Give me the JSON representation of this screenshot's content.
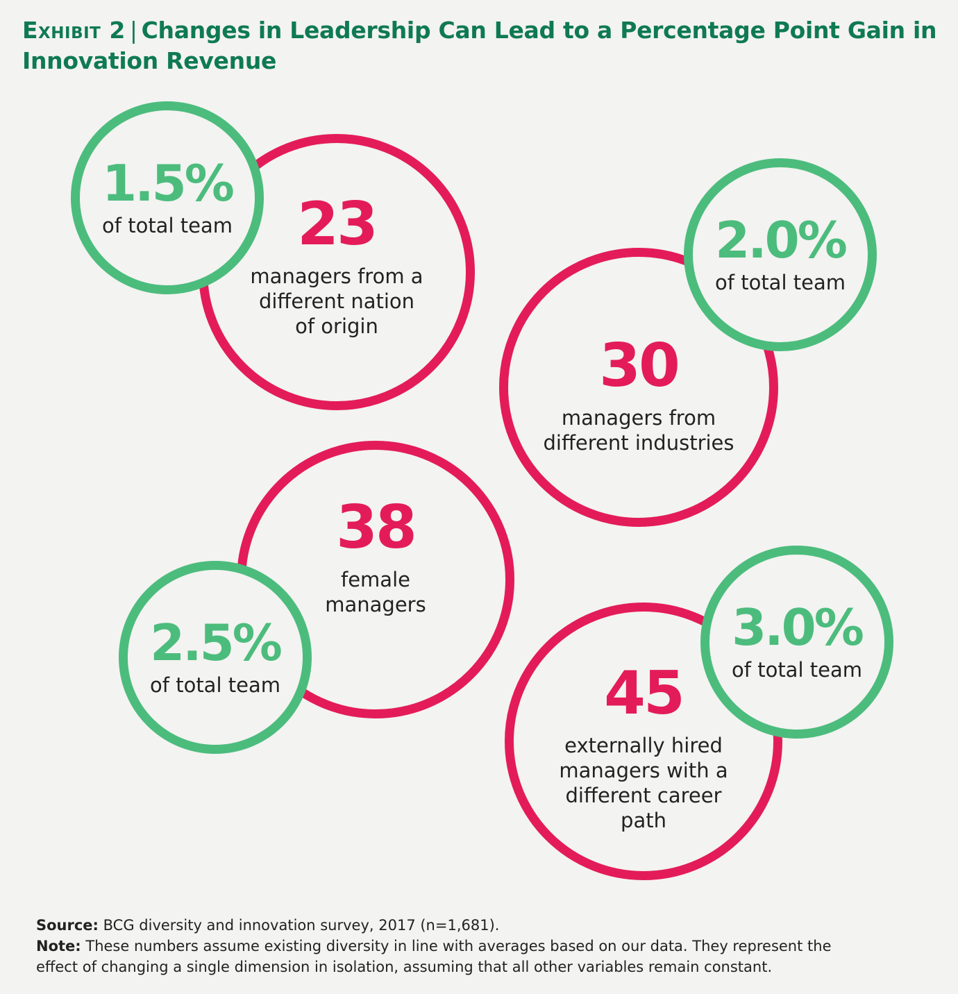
{
  "title": {
    "exhibit": "Exhibit 2",
    "separator": "|",
    "text": "Changes in Leadership Can Lead to a Percentage Point Gain in Innovation Revenue"
  },
  "items": [
    {
      "count": "23",
      "description_lines": [
        "managers from a",
        "different nation",
        "of origin"
      ],
      "percent": "1.5%",
      "percent_label": "of total team"
    },
    {
      "count": "30",
      "description_lines": [
        "managers from",
        "different industries"
      ],
      "percent": "2.0%",
      "percent_label": "of total team"
    },
    {
      "count": "38",
      "description_lines": [
        "female",
        "managers"
      ],
      "percent": "2.5%",
      "percent_label": "of total team"
    },
    {
      "count": "45",
      "description_lines": [
        "externally hired",
        "managers with a",
        "different career",
        "path"
      ],
      "percent": "3.0%",
      "percent_label": "of total team"
    }
  ],
  "footer": {
    "source_label": "Source:",
    "source_text": "BCG diversity and innovation survey, 2017 (n=1,681).",
    "note_label": "Note:",
    "note_text_line1": "These numbers assume existing diversity in line with averages based on our data. They represent the",
    "note_text_line2": "effect of changing a single dimension in isolation, assuming that all other variables remain constant."
  },
  "colors": {
    "title": "#0f7a52",
    "red": "#e31c59",
    "green": "#4cbc7d",
    "background": "#f3f3f1"
  }
}
